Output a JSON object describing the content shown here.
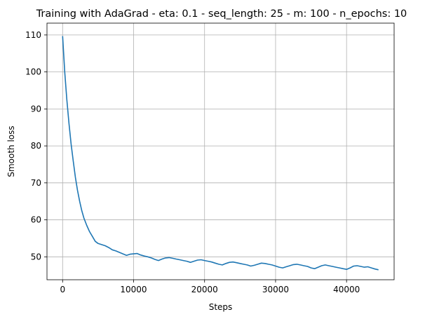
{
  "chart_data": {
    "type": "line",
    "title": "Training with AdaGrad - eta: 0.1 - seq_length: 25 - m: 100 - n_epochs: 10",
    "xlabel": "Steps",
    "ylabel": "Smooth loss",
    "xlim": [
      -2200,
      46700
    ],
    "ylim": [
      43.8,
      113.2
    ],
    "xticks": [
      0,
      10000,
      20000,
      30000,
      40000
    ],
    "yticks": [
      50,
      60,
      70,
      80,
      90,
      100,
      110
    ],
    "grid": true,
    "line_color": "#1f77b4",
    "series": [
      {
        "x": [
          0,
          300,
          600,
          900,
          1200,
          1500,
          1800,
          2100,
          2400,
          2700,
          3000,
          3400,
          3800,
          4200,
          4600,
          5000,
          5500,
          6000,
          6500,
          7000,
          7500,
          8000,
          8500,
          9000,
          9500,
          10000,
          10500,
          11000,
          11500,
          12000,
          12500,
          13000,
          13500,
          14000,
          14500,
          15000,
          15500,
          16000,
          16500,
          17000,
          17500,
          18000,
          18500,
          19000,
          19500,
          20000,
          20500,
          21000,
          21500,
          22000,
          22500,
          23000,
          23500,
          24000,
          24500,
          25000,
          25500,
          26000,
          26500,
          27000,
          27500,
          28000,
          28500,
          29000,
          29500,
          30000,
          30500,
          31000,
          31500,
          32000,
          32500,
          33000,
          33500,
          34000,
          34500,
          35000,
          35500,
          36000,
          36500,
          37000,
          37500,
          38000,
          38500,
          39000,
          39500,
          40000,
          40500,
          41000,
          41500,
          42000,
          42500,
          43000,
          43500,
          44000,
          44500
        ],
        "y": [
          109.7,
          100.0,
          92.5,
          86.0,
          80.5,
          75.8,
          71.5,
          68.0,
          65.0,
          62.5,
          60.5,
          58.5,
          56.8,
          55.5,
          54.2,
          53.6,
          53.3,
          53.0,
          52.5,
          51.9,
          51.6,
          51.2,
          50.8,
          50.4,
          50.7,
          50.8,
          50.9,
          50.5,
          50.2,
          50.0,
          49.7,
          49.3,
          49.0,
          49.4,
          49.7,
          49.8,
          49.6,
          49.4,
          49.2,
          49.0,
          48.8,
          48.5,
          48.8,
          49.1,
          49.2,
          49.0,
          48.8,
          48.6,
          48.3,
          48.0,
          47.8,
          48.2,
          48.5,
          48.6,
          48.4,
          48.2,
          48.0,
          47.8,
          47.5,
          47.7,
          48.0,
          48.3,
          48.2,
          48.0,
          47.8,
          47.5,
          47.2,
          47.0,
          47.3,
          47.6,
          47.9,
          48.0,
          47.8,
          47.6,
          47.4,
          47.0,
          46.8,
          47.2,
          47.6,
          47.8,
          47.6,
          47.4,
          47.2,
          47.0,
          46.8,
          46.6,
          47.0,
          47.5,
          47.6,
          47.4,
          47.2,
          47.3,
          47.0,
          46.7,
          46.5
        ]
      }
    ]
  }
}
